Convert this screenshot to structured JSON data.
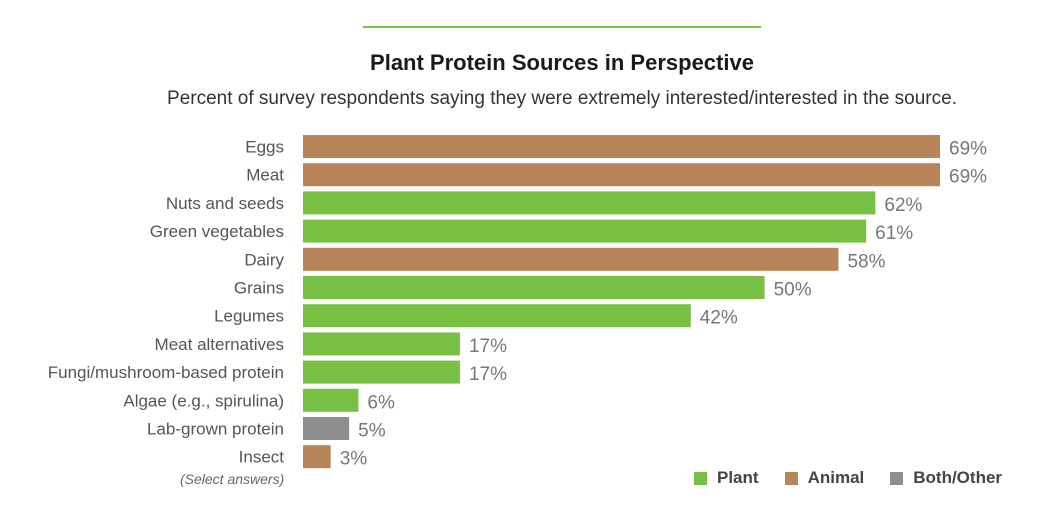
{
  "chart_data": {
    "type": "bar",
    "orientation": "horizontal",
    "title": "Plant Protein Sources in Perspective",
    "subtitle": "Percent of survey respondents saying they were extremely interested/interested in the source.",
    "note": "(Select answers)",
    "categories": [
      "Eggs",
      "Meat",
      "Nuts and seeds",
      "Green vegetables",
      "Dairy",
      "Grains",
      "Legumes",
      "Meat alternatives",
      "Fungi/mushroom-based protein",
      "Algae (e.g., spirulina)",
      "Lab-grown protein",
      "Insect"
    ],
    "values": [
      69,
      69,
      62,
      61,
      58,
      50,
      42,
      17,
      17,
      6,
      5,
      3
    ],
    "value_labels": [
      "69%",
      "69%",
      "62%",
      "61%",
      "58%",
      "50%",
      "42%",
      "17%",
      "17%",
      "6%",
      "5%",
      "3%"
    ],
    "groups": [
      "Animal",
      "Animal",
      "Plant",
      "Plant",
      "Animal",
      "Plant",
      "Plant",
      "Plant",
      "Plant",
      "Plant",
      "Both/Other",
      "Animal"
    ],
    "legend": [
      {
        "name": "Plant",
        "color": "#77c043"
      },
      {
        "name": "Animal",
        "color": "#b8845a"
      },
      {
        "name": "Both/Other",
        "color": "#8e8e8e"
      }
    ],
    "xlim": [
      0,
      69
    ],
    "legend_position": "bottom-right",
    "grid": false
  }
}
